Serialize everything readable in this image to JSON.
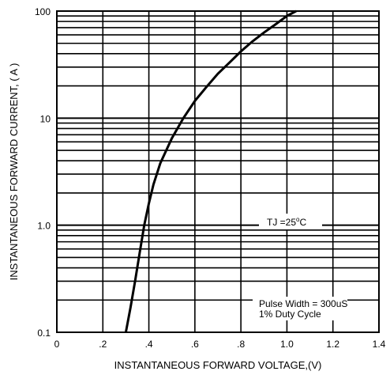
{
  "chart_data": {
    "type": "line",
    "title": "",
    "xlabel": "INSTANTANEOUS FORWARD VOLTAGE,(V)",
    "ylabel": "INSTANTANEOUS FORWARD CURRENT, ( A )",
    "x_scale": "linear",
    "y_scale": "log",
    "xlim": [
      0,
      1.4
    ],
    "ylim": [
      0.1,
      100
    ],
    "grid": true,
    "legend": "none",
    "x_tick_labels": [
      "0",
      ".2",
      ".4",
      ".6",
      ".8",
      "1.0",
      "1.2",
      "1.4"
    ],
    "y_tick_labels": [
      "0.1",
      "1.0",
      "10",
      "100"
    ],
    "series": [
      {
        "x": [
          0.3,
          0.32,
          0.34,
          0.36,
          0.38,
          0.4,
          0.42,
          0.45,
          0.5,
          0.55,
          0.6,
          0.65,
          0.7,
          0.75,
          0.8,
          0.85,
          0.9,
          0.95,
          1.0,
          1.04
        ],
        "y": [
          0.1,
          0.17,
          0.3,
          0.55,
          1.0,
          1.6,
          2.4,
          3.8,
          6.5,
          10,
          14.5,
          19.5,
          26,
          33,
          42,
          52,
          63,
          75,
          90,
          100
        ]
      }
    ],
    "annotations": {
      "temperature_main": "TJ =25",
      "temperature_unit": "C",
      "pulse_line1": "Pulse Width = 300uS",
      "pulse_line2": "1% Duty Cycle"
    },
    "colors": {
      "line": "#000000",
      "grid": "#000000"
    }
  }
}
